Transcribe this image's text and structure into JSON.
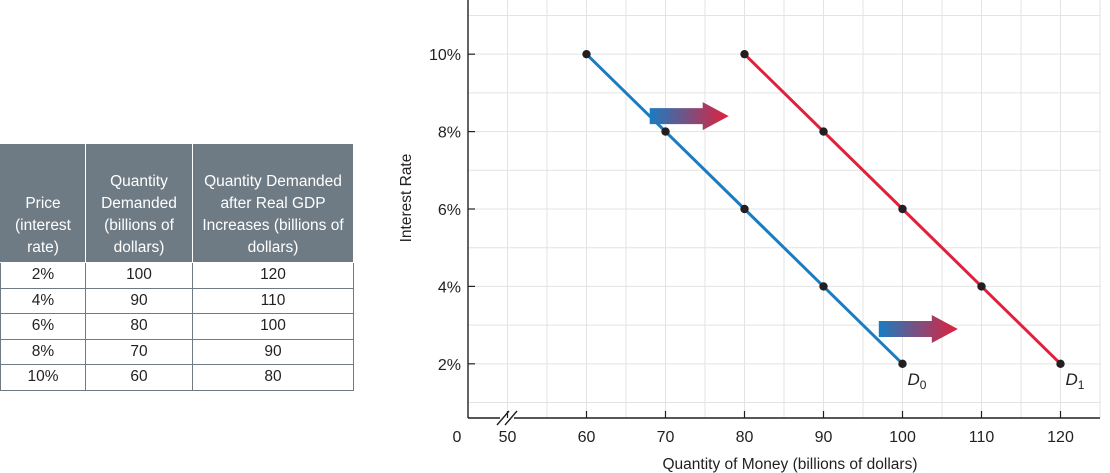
{
  "table": {
    "headers": [
      "Price (interest rate)",
      "Quantity Demanded (billions of dollars)",
      "Quantity Demanded after Real GDP Increases (billions of dollars)"
    ],
    "rows": [
      [
        "2%",
        "100",
        "120"
      ],
      [
        "4%",
        "90",
        "110"
      ],
      [
        "6%",
        "80",
        "100"
      ],
      [
        "8%",
        "70",
        "90"
      ],
      [
        "10%",
        "60",
        "80"
      ]
    ]
  },
  "chart_data": {
    "type": "line",
    "xlabel": "Quantity of Money (billions of dollars)",
    "ylabel": "Interest Rate",
    "x_origin_label": "0",
    "x_axis_break": true,
    "xlim": [
      45,
      125
    ],
    "ylim": [
      0.6,
      11.4
    ],
    "x_ticks": [
      50,
      60,
      70,
      80,
      90,
      100,
      110,
      120
    ],
    "x_tick_labels": [
      "50",
      "60",
      "70",
      "80",
      "90",
      "100",
      "110",
      "120"
    ],
    "y_ticks": [
      2,
      4,
      6,
      8,
      10
    ],
    "y_tick_labels": [
      "2%",
      "4%",
      "6%",
      "8%",
      "10%"
    ],
    "grid": true,
    "series": [
      {
        "name": "D0",
        "label_main": "D",
        "label_sub": "0",
        "color": "#1a7cc1",
        "points": [
          [
            60,
            10
          ],
          [
            70,
            8
          ],
          [
            80,
            6
          ],
          [
            90,
            4
          ],
          [
            100,
            2
          ]
        ]
      },
      {
        "name": "D1",
        "label_main": "D",
        "label_sub": "1",
        "color": "#e0213c",
        "points": [
          [
            80,
            10
          ],
          [
            90,
            8
          ],
          [
            100,
            6
          ],
          [
            110,
            4
          ],
          [
            120,
            2
          ]
        ]
      }
    ],
    "annotations": [
      {
        "type": "shift-arrow",
        "from_x": 68,
        "to_x": 78,
        "y": 8.4
      },
      {
        "type": "shift-arrow",
        "from_x": 97,
        "to_x": 107,
        "y": 2.9
      }
    ],
    "colors": {
      "arrow_start": "#1a7cc1",
      "arrow_end": "#e0213c",
      "grid": "#e3e3e3",
      "axis": "#231f20",
      "point": "#231f20",
      "table_header_bg": "#6e7b85"
    }
  }
}
